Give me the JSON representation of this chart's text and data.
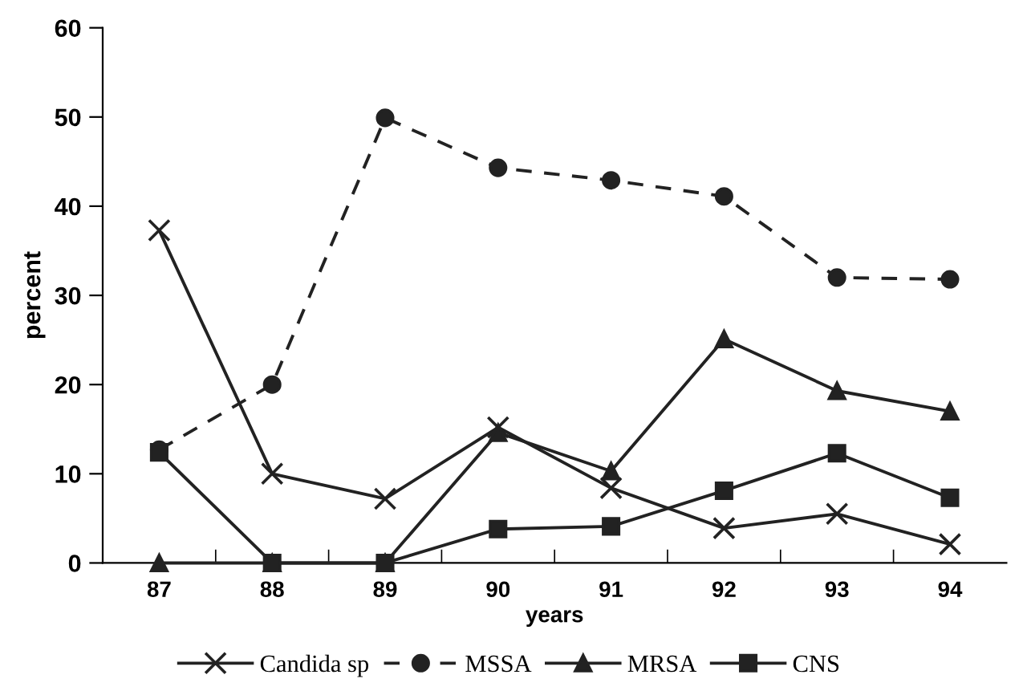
{
  "chart_data": {
    "type": "line",
    "xlabel": "years",
    "ylabel": "percent",
    "categories": [
      "87",
      "88",
      "89",
      "90",
      "91",
      "92",
      "93",
      "94"
    ],
    "ylim": [
      0,
      60
    ],
    "yticks": [
      0,
      10,
      20,
      30,
      40,
      50,
      60
    ],
    "grid": false,
    "legend": "bottom",
    "series": [
      {
        "name": "Candida sp",
        "color": "#222222",
        "marker": "cross",
        "line_style": "solid",
        "values": [
          37.3,
          10.0,
          7.2,
          15.2,
          8.4,
          3.9,
          5.5,
          2.1
        ]
      },
      {
        "name": "MSSA",
        "color": "#222222",
        "marker": "circle",
        "line_style": "dashed",
        "values": [
          12.7,
          20.0,
          49.9,
          44.3,
          42.9,
          41.1,
          32.0,
          31.8
        ]
      },
      {
        "name": "MRSA",
        "color": "#222222",
        "marker": "triangle",
        "line_style": "solid",
        "values": [
          0,
          0,
          0,
          14.6,
          10.3,
          25.1,
          19.3,
          17.0
        ]
      },
      {
        "name": "CNS",
        "color": "#222222",
        "marker": "square",
        "line_style": "solid",
        "values": [
          12.4,
          0,
          0,
          3.8,
          4.1,
          8.1,
          12.3,
          7.3
        ]
      }
    ]
  }
}
